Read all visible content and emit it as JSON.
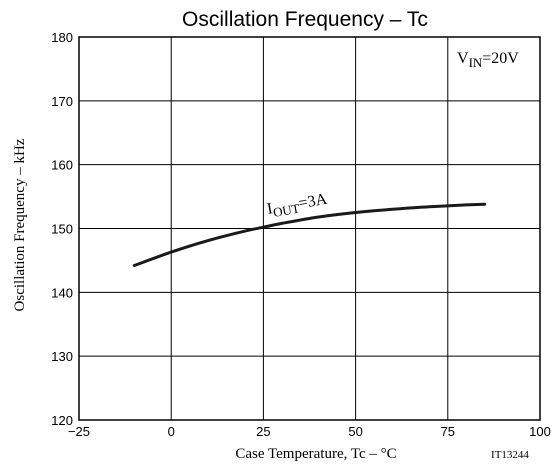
{
  "chart_data": {
    "type": "line",
    "title": "Oscillation Frequency  –  Tc",
    "xlabel": "Case Temperature,  Tc  –  °C",
    "ylabel": "Oscillation Frequency  –  kHz",
    "xlim": [
      -25,
      100
    ],
    "ylim": [
      120,
      180
    ],
    "xticks": [
      -25,
      0,
      25,
      50,
      75,
      100
    ],
    "yticks": [
      120,
      130,
      140,
      150,
      160,
      170,
      180
    ],
    "xtick_labels": [
      "−25",
      "0",
      "25",
      "50",
      "75",
      "100"
    ],
    "ytick_labels": [
      "120",
      "130",
      "140",
      "150",
      "160",
      "170",
      "180"
    ],
    "grid": true,
    "condition": {
      "main": "V",
      "sub": "IN",
      "rest": "=20V"
    },
    "figure_id": "IT13244",
    "series": [
      {
        "label_main": "I",
        "label_sub": "OUT",
        "label_rest": "=3A",
        "x": [
          -10,
          0,
          10,
          20,
          25,
          30,
          40,
          50,
          60,
          70,
          80,
          85
        ],
        "y": [
          144.2,
          146.3,
          148.1,
          149.6,
          150.2,
          150.8,
          151.8,
          152.5,
          153.0,
          153.4,
          153.7,
          153.8
        ]
      }
    ]
  }
}
